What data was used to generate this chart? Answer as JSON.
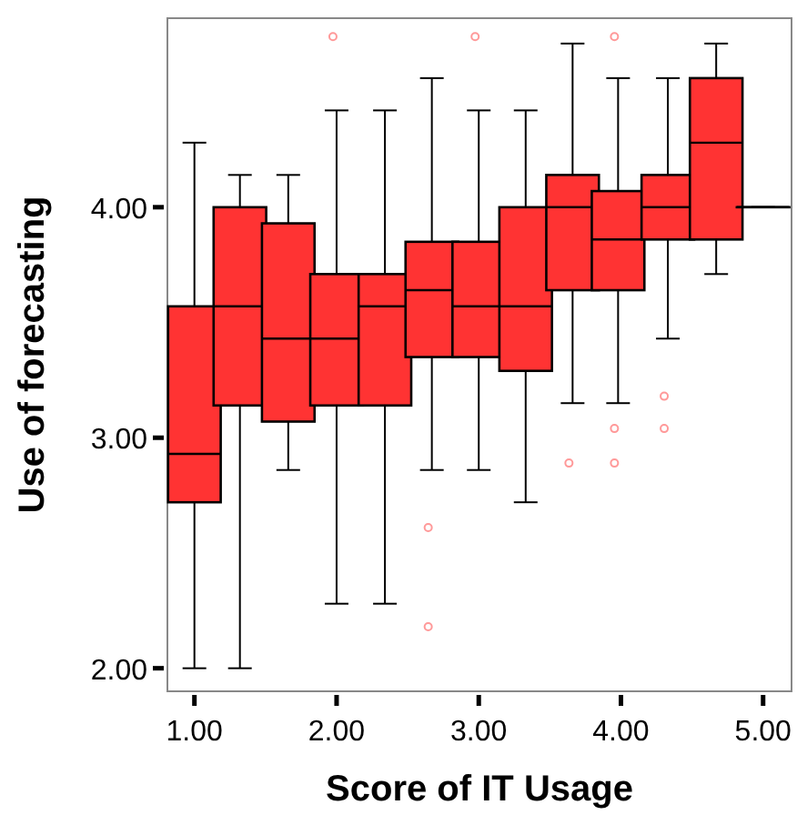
{
  "chart_data": {
    "type": "box",
    "xlabel": "Score of  IT Usage",
    "ylabel": "Use of  forecasting",
    "x": [
      1.0,
      1.32,
      1.66,
      2.0,
      2.34,
      2.67,
      3.0,
      3.33,
      3.66,
      3.98,
      4.33,
      4.67,
      5.0
    ],
    "series": [
      {
        "color": "#ff3333",
        "boxes": [
          {
            "low": 2.0,
            "q1": 2.72,
            "median": 2.93,
            "q3": 3.57,
            "high": 4.28
          },
          {
            "low": 2.0,
            "q1": 3.14,
            "median": 3.57,
            "q3": 4.0,
            "high": 4.14
          },
          {
            "low": 2.86,
            "q1": 3.07,
            "median": 3.43,
            "q3": 3.93,
            "high": 4.14
          },
          {
            "low": 2.28,
            "q1": 3.14,
            "median": 3.43,
            "q3": 3.71,
            "high": 4.42,
            "outliers": [
              4.74
            ]
          },
          {
            "low": 2.28,
            "q1": 3.14,
            "median": 3.57,
            "q3": 3.71,
            "high": 4.42
          },
          {
            "low": 2.86,
            "q1": 3.35,
            "median": 3.64,
            "q3": 3.85,
            "high": 4.56,
            "outliers": [
              2.61,
              2.18
            ]
          },
          {
            "low": 2.86,
            "q1": 3.35,
            "median": 3.57,
            "q3": 3.85,
            "high": 4.42,
            "outliers": [
              4.74
            ]
          },
          {
            "low": 2.72,
            "q1": 3.29,
            "median": 3.57,
            "q3": 4.0,
            "high": 4.42
          },
          {
            "low": 3.15,
            "q1": 3.64,
            "median": 4.0,
            "q3": 4.14,
            "high": 4.71,
            "outliers": [
              2.89
            ]
          },
          {
            "low": 3.15,
            "q1": 3.64,
            "median": 3.86,
            "q3": 4.07,
            "high": 4.56,
            "outliers": [
              4.74,
              3.04,
              2.89
            ]
          },
          {
            "low": 3.43,
            "q1": 3.86,
            "median": 4.0,
            "q3": 4.14,
            "high": 4.56,
            "outliers": [
              3.18,
              3.04
            ]
          },
          {
            "low": 3.71,
            "q1": 3.86,
            "median": 4.28,
            "q3": 4.56,
            "high": 4.71
          },
          {
            "low": 4.0,
            "q1": 4.0,
            "median": 4.0,
            "q3": 4.0,
            "high": 4.0
          }
        ]
      }
    ],
    "xlim": [
      0.81,
      5.2
    ],
    "ylim": [
      1.9,
      4.82
    ],
    "xticks": [
      {
        "value": 1,
        "label": "1.00"
      },
      {
        "value": 2,
        "label": "2.00"
      },
      {
        "value": 3,
        "label": "3.00"
      },
      {
        "value": 4,
        "label": "4.00"
      },
      {
        "value": 5,
        "label": "5.00"
      }
    ],
    "yticks": [
      {
        "value": 2,
        "label": "2.00"
      },
      {
        "value": 3,
        "label": "3.00"
      },
      {
        "value": 4,
        "label": "4.00"
      }
    ]
  }
}
